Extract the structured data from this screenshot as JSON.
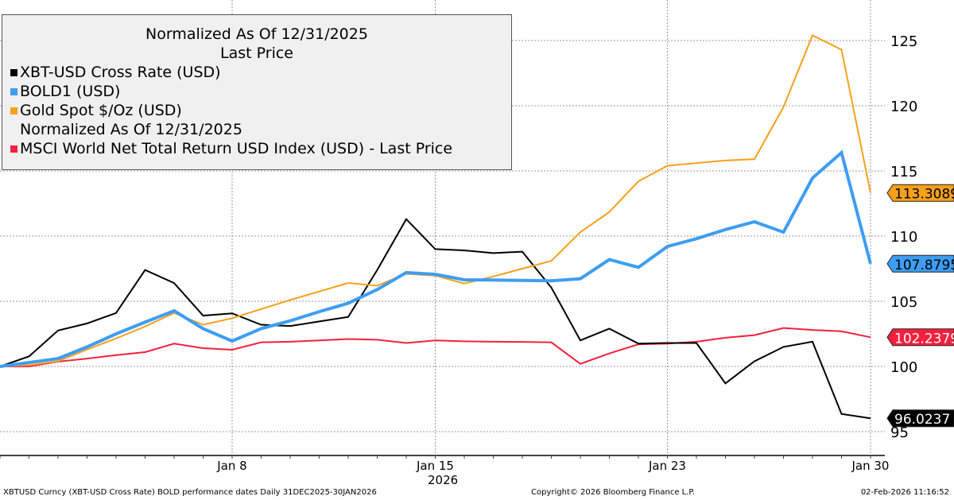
{
  "legend": {
    "title": "Normalized As Of 12/31/2025",
    "subtitle": "Last Price",
    "note": "Normalized As Of 12/31/2025"
  },
  "footer": {
    "left": "XBTUSD Curncy (XBT-USD Cross Rate) BOLD performance dates Daily 31DEC2025-30JAN2026",
    "center": "Copyright© 2026 Bloomberg Finance L.P.",
    "right": "02-Feb-2026 11:16:52"
  },
  "chart_data": {
    "type": "line",
    "title": "Normalized As Of 12/31/2025 - Last Price",
    "xlabel": "2026",
    "ylabel": "",
    "x": [
      "Dec 31",
      "Jan 1",
      "Jan 2",
      "Jan 3",
      "Jan 4",
      "Jan 5",
      "Jan 6",
      "Jan 7",
      "Jan 8",
      "Jan 9",
      "Jan 10",
      "Jan 11",
      "Jan 12",
      "Jan 13",
      "Jan 14",
      "Jan 15",
      "Jan 16",
      "Jan 17",
      "Jan 18",
      "Jan 19",
      "Jan 20",
      "Jan 21",
      "Jan 22",
      "Jan 23",
      "Jan 24",
      "Jan 25",
      "Jan 26",
      "Jan 27",
      "Jan 28",
      "Jan 29",
      "Jan 30"
    ],
    "x_ticks": [
      {
        "index": 8,
        "label": "Jan 8"
      },
      {
        "index": 15,
        "label": "Jan 15"
      },
      {
        "index": 23,
        "label": "Jan 23"
      },
      {
        "index": 30,
        "label": "Jan 30"
      }
    ],
    "year_label": "2026",
    "ylim": [
      93,
      127
    ],
    "y_ticks": [
      95,
      100,
      105,
      110,
      115,
      120,
      125
    ],
    "grid": true,
    "legend_position": "top-left",
    "series": [
      {
        "name": "XBT-USD Cross Rate (USD)",
        "color": "#000000",
        "text_color": "#ffffff",
        "width": 2,
        "last_label": "96.0237",
        "values": [
          100,
          100.77,
          102.76,
          103.3,
          104.1,
          107.4,
          106.4,
          103.9,
          104.07,
          103.2,
          103.1,
          103.45,
          103.8,
          107.4,
          111.3,
          109.0,
          108.9,
          108.7,
          108.8,
          106.05,
          102.0,
          102.9,
          101.75,
          101.8,
          101.8,
          98.7,
          100.4,
          101.5,
          101.9,
          96.36,
          96.0237
        ]
      },
      {
        "name": "BOLD1 (USD)",
        "color": "#3d9df3",
        "text_color": "#000000",
        "width": 4,
        "last_label": "107.8795",
        "values": [
          100,
          100.3,
          100.6,
          101.5,
          102.5,
          103.4,
          104.27,
          102.9,
          101.95,
          102.9,
          103.5,
          104.2,
          104.85,
          105.9,
          107.2,
          107.07,
          106.65,
          106.63,
          106.6,
          106.57,
          106.73,
          108.2,
          107.6,
          109.2,
          109.8,
          110.5,
          111.1,
          110.3,
          114.45,
          116.4,
          107.8795
        ]
      },
      {
        "name": "Gold Spot $/Oz (USD)",
        "color": "#f7a01b",
        "text_color": "#000000",
        "width": 2,
        "last_label": "113.3089",
        "values": [
          100,
          100.1,
          100.4,
          101.3,
          102.15,
          103.07,
          104.1,
          103.2,
          103.7,
          104.4,
          105.1,
          105.75,
          106.4,
          106.2,
          107.1,
          106.97,
          106.36,
          106.9,
          107.5,
          108.1,
          110.3,
          111.85,
          114.2,
          115.4,
          115.6,
          115.8,
          115.9,
          119.9,
          125.4,
          124.3,
          113.3089
        ]
      },
      {
        "name": "MSCI World Net Total Return USD Index (USD) - Last Price",
        "color": "#f5203e",
        "text_color": "#ffffff",
        "width": 2,
        "last_label": "102.2379",
        "values": [
          100,
          100.0,
          100.37,
          100.6,
          100.87,
          101.1,
          101.75,
          101.4,
          101.28,
          101.85,
          101.9,
          102.0,
          102.1,
          102.05,
          101.8,
          102.0,
          101.93,
          101.9,
          101.88,
          101.85,
          100.2,
          101.0,
          101.7,
          101.75,
          101.9,
          102.2,
          102.4,
          102.95,
          102.8,
          102.7,
          102.2379
        ]
      }
    ]
  }
}
